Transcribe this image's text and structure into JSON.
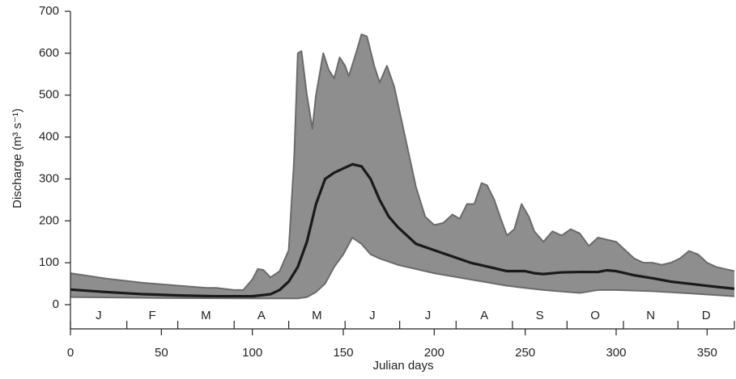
{
  "chart_data": {
    "type": "band",
    "y_label": "Discharge (m³ s⁻¹)",
    "x_label": "Julian days",
    "xlim": [
      0,
      365
    ],
    "ylim": [
      0,
      700
    ],
    "xticks": [
      0,
      50,
      100,
      150,
      200,
      250,
      300,
      350
    ],
    "yticks": [
      0,
      100,
      200,
      300,
      400,
      500,
      600,
      700
    ],
    "xticks_minor": [
      0,
      31,
      59,
      90,
      120,
      151,
      181,
      212,
      243,
      273,
      304,
      334,
      365
    ],
    "categories": [
      "J",
      "F",
      "M",
      "A",
      "M",
      "J",
      "J",
      "A",
      "S",
      "O",
      "N",
      "D"
    ],
    "band_color": "#8e8e8f",
    "band_edge": "#6b6b6b",
    "series": [
      {
        "color": "#6b6b6b",
        "x": [
          0,
          20,
          40,
          60,
          75,
          80,
          90,
          95,
          100,
          103,
          106,
          110,
          115,
          120,
          123,
          125,
          127,
          130,
          133,
          135,
          139,
          142,
          145,
          148,
          151,
          153,
          157,
          160,
          163,
          167,
          170,
          174,
          178,
          183,
          190,
          195,
          200,
          205,
          210,
          214,
          218,
          222,
          226,
          229,
          233,
          237,
          240,
          244,
          248,
          252,
          255,
          260,
          265,
          270,
          275,
          280,
          285,
          290,
          295,
          300,
          305,
          310,
          315,
          320,
          325,
          330,
          335,
          340,
          345,
          350,
          355,
          360,
          365
        ],
        "values": [
          75,
          62,
          52,
          45,
          40,
          40,
          35,
          35,
          60,
          85,
          83,
          65,
          80,
          130,
          350,
          600,
          605,
          500,
          420,
          500,
          600,
          560,
          540,
          590,
          570,
          545,
          600,
          645,
          640,
          570,
          530,
          570,
          520,
          420,
          280,
          210,
          190,
          195,
          215,
          205,
          240,
          240,
          290,
          285,
          250,
          200,
          165,
          180,
          240,
          210,
          175,
          150,
          175,
          165,
          180,
          170,
          140,
          160,
          155,
          150,
          130,
          110,
          100,
          100,
          95,
          100,
          110,
          128,
          120,
          100,
          90,
          85,
          80
        ]
      },
      {
        "color": "#1a1a1a",
        "x": [
          0,
          20,
          40,
          60,
          80,
          100,
          110,
          115,
          120,
          125,
          130,
          135,
          140,
          145,
          150,
          155,
          160,
          165,
          170,
          175,
          180,
          185,
          190,
          200,
          210,
          220,
          230,
          240,
          250,
          255,
          260,
          270,
          280,
          290,
          295,
          300,
          310,
          320,
          330,
          340,
          350,
          365
        ],
        "values": [
          36,
          30,
          25,
          22,
          20,
          20,
          25,
          35,
          55,
          90,
          150,
          240,
          300,
          315,
          325,
          335,
          330,
          300,
          250,
          210,
          185,
          165,
          145,
          130,
          115,
          100,
          90,
          80,
          80,
          75,
          73,
          77,
          78,
          78,
          82,
          80,
          70,
          63,
          55,
          50,
          45,
          38
        ]
      },
      {
        "color": "#6b6b6b",
        "x": [
          0,
          50,
          100,
          120,
          125,
          130,
          135,
          140,
          145,
          150,
          155,
          160,
          165,
          170,
          180,
          200,
          220,
          240,
          260,
          280,
          290,
          300,
          320,
          340,
          365
        ],
        "values": [
          18,
          16,
          15,
          15,
          15,
          18,
          30,
          50,
          90,
          120,
          160,
          145,
          120,
          110,
          95,
          75,
          60,
          45,
          35,
          28,
          35,
          35,
          32,
          27,
          20
        ]
      }
    ]
  }
}
